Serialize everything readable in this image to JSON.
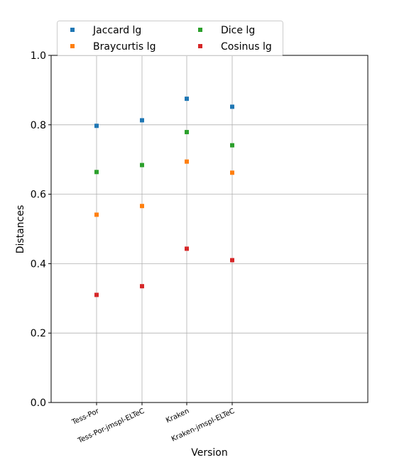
{
  "chart_data": {
    "type": "scatter",
    "title": "",
    "xlabel": "Version",
    "ylabel": "Distances",
    "ylim": [
      0.0,
      1.0
    ],
    "yticks": [
      "0.0",
      "0.2",
      "0.4",
      "0.6",
      "0.8",
      "1.0"
    ],
    "categories": [
      "Tess-Por",
      "Tess-Por-jmspl-ELTeC",
      "Kraken",
      "Kraken-jmspl-ELTeC"
    ],
    "grid": true,
    "legend": {
      "placement": "top-left",
      "columns": 2
    },
    "series": [
      {
        "name": "Jaccard lg",
        "color": "#1f77b4",
        "values": [
          0.797,
          0.813,
          0.875,
          0.852
        ]
      },
      {
        "name": "Braycurtis lg",
        "color": "#ff7f0e",
        "values": [
          0.541,
          0.566,
          0.694,
          0.662
        ]
      },
      {
        "name": "Dice lg",
        "color": "#2ca02c",
        "values": [
          0.664,
          0.684,
          0.779,
          0.741
        ]
      },
      {
        "name": "Cosinus lg",
        "color": "#d62728",
        "values": [
          0.31,
          0.335,
          0.443,
          0.41
        ]
      }
    ]
  }
}
